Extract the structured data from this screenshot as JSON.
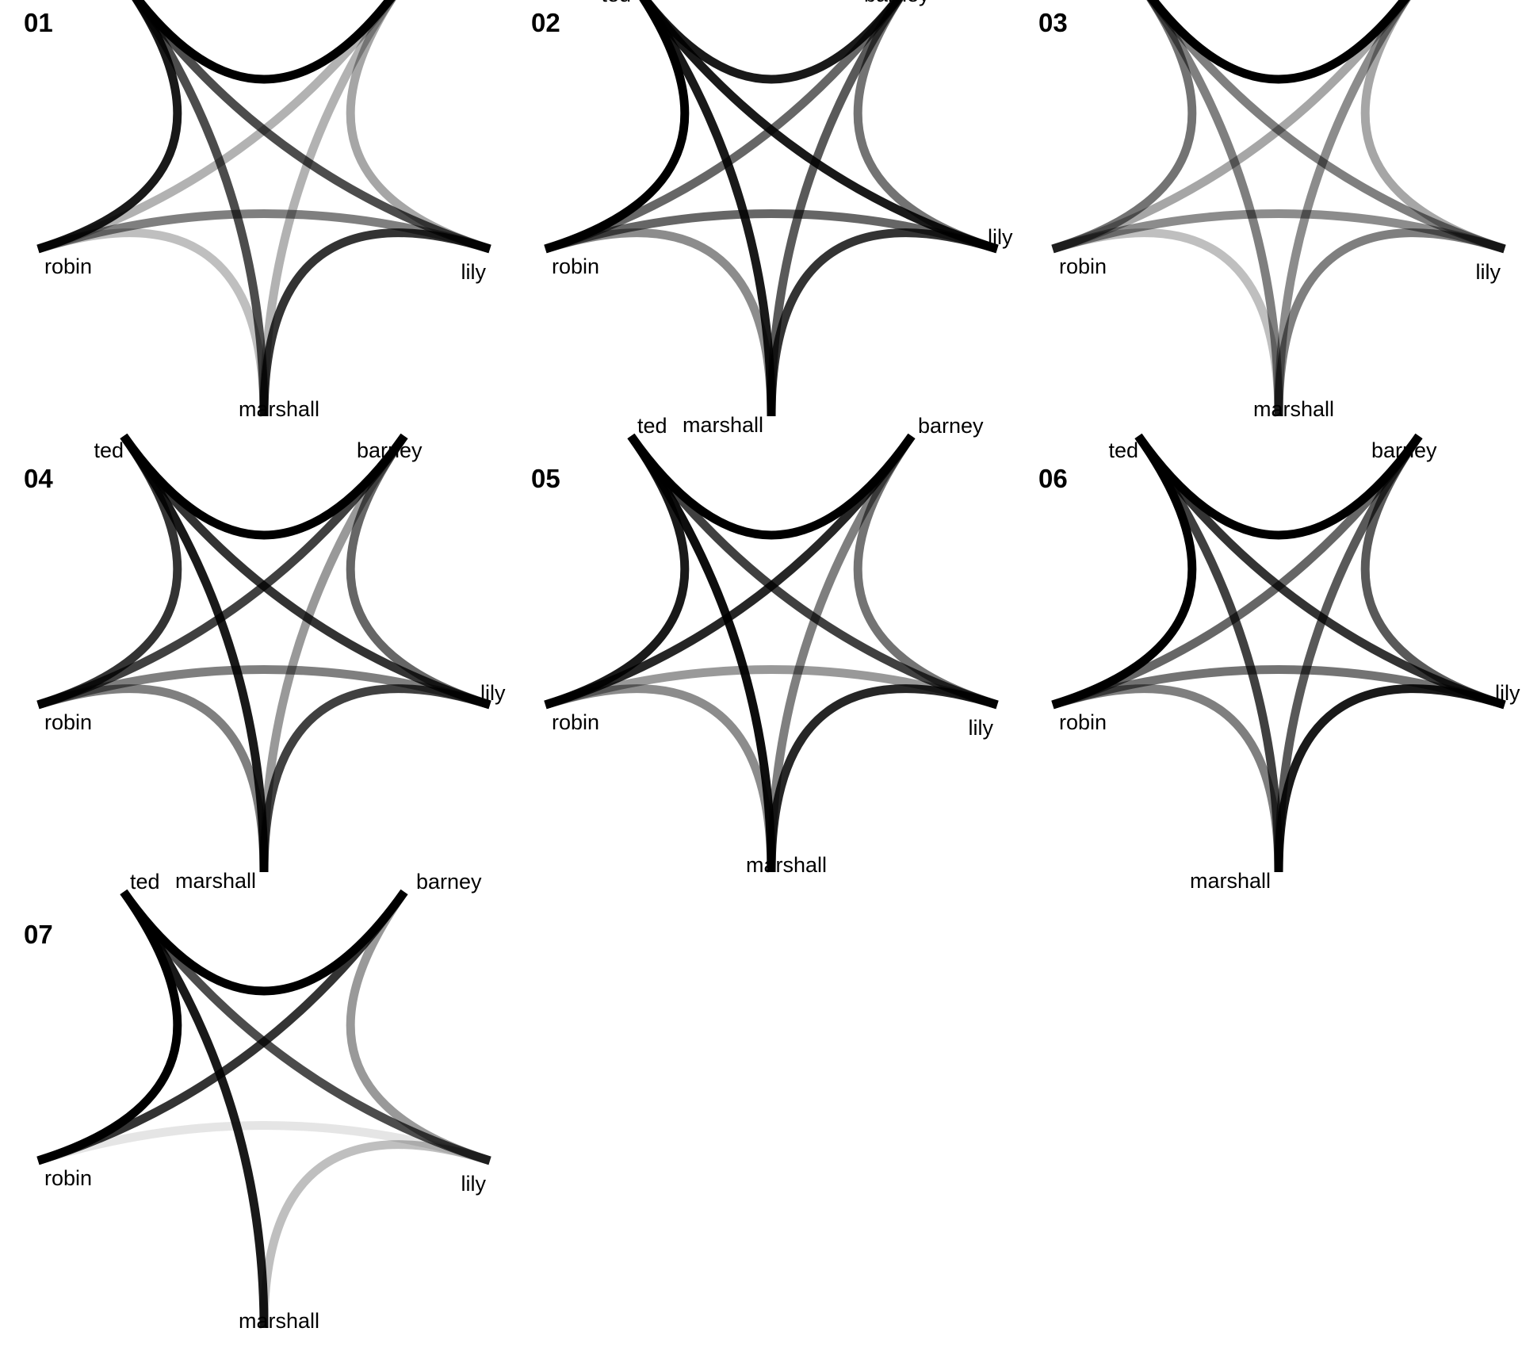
{
  "colors": {
    "edge": "#000000",
    "background": "#ffffff",
    "text": "#000000"
  },
  "nodes": [
    "ted",
    "barney",
    "lily",
    "marshall",
    "robin"
  ],
  "panels": [
    {
      "label": "01",
      "edges": [
        {
          "a": "ted",
          "b": "barney",
          "opacity": 1.0
        },
        {
          "a": "ted",
          "b": "lily",
          "opacity": 0.7
        },
        {
          "a": "ted",
          "b": "marshall",
          "opacity": 0.7
        },
        {
          "a": "ted",
          "b": "robin",
          "opacity": 0.9
        },
        {
          "a": "barney",
          "b": "lily",
          "opacity": 0.35
        },
        {
          "a": "barney",
          "b": "marshall",
          "opacity": 0.3
        },
        {
          "a": "barney",
          "b": "robin",
          "opacity": 0.3
        },
        {
          "a": "lily",
          "b": "marshall",
          "opacity": 0.8
        },
        {
          "a": "lily",
          "b": "robin",
          "opacity": 0.5
        },
        {
          "a": "marshall",
          "b": "robin",
          "opacity": 0.25
        }
      ]
    },
    {
      "label": "02",
      "edges": [
        {
          "a": "ted",
          "b": "barney",
          "opacity": 0.9
        },
        {
          "a": "ted",
          "b": "lily",
          "opacity": 0.9
        },
        {
          "a": "ted",
          "b": "marshall",
          "opacity": 0.9
        },
        {
          "a": "ted",
          "b": "robin",
          "opacity": 1.0
        },
        {
          "a": "barney",
          "b": "lily",
          "opacity": 0.55
        },
        {
          "a": "barney",
          "b": "marshall",
          "opacity": 0.65
        },
        {
          "a": "barney",
          "b": "robin",
          "opacity": 0.6
        },
        {
          "a": "lily",
          "b": "marshall",
          "opacity": 0.8
        },
        {
          "a": "lily",
          "b": "robin",
          "opacity": 0.6
        },
        {
          "a": "marshall",
          "b": "robin",
          "opacity": 0.45
        }
      ]
    },
    {
      "label": "03",
      "edges": [
        {
          "a": "ted",
          "b": "barney",
          "opacity": 1.0
        },
        {
          "a": "ted",
          "b": "lily",
          "opacity": 0.5
        },
        {
          "a": "ted",
          "b": "marshall",
          "opacity": 0.5
        },
        {
          "a": "ted",
          "b": "robin",
          "opacity": 0.55
        },
        {
          "a": "barney",
          "b": "lily",
          "opacity": 0.35
        },
        {
          "a": "barney",
          "b": "marshall",
          "opacity": 0.45
        },
        {
          "a": "barney",
          "b": "robin",
          "opacity": 0.35
        },
        {
          "a": "lily",
          "b": "marshall",
          "opacity": 0.5
        },
        {
          "a": "lily",
          "b": "robin",
          "opacity": 0.45
        },
        {
          "a": "marshall",
          "b": "robin",
          "opacity": 0.25
        }
      ]
    },
    {
      "label": "04",
      "edges": [
        {
          "a": "ted",
          "b": "barney",
          "opacity": 1.0
        },
        {
          "a": "ted",
          "b": "lily",
          "opacity": 0.8
        },
        {
          "a": "ted",
          "b": "marshall",
          "opacity": 0.9
        },
        {
          "a": "ted",
          "b": "robin",
          "opacity": 0.8
        },
        {
          "a": "barney",
          "b": "lily",
          "opacity": 0.6
        },
        {
          "a": "barney",
          "b": "marshall",
          "opacity": 0.4
        },
        {
          "a": "barney",
          "b": "robin",
          "opacity": 0.75
        },
        {
          "a": "lily",
          "b": "marshall",
          "opacity": 0.75
        },
        {
          "a": "lily",
          "b": "robin",
          "opacity": 0.5
        },
        {
          "a": "marshall",
          "b": "robin",
          "opacity": 0.5
        }
      ]
    },
    {
      "label": "05",
      "edges": [
        {
          "a": "ted",
          "b": "barney",
          "opacity": 1.0
        },
        {
          "a": "ted",
          "b": "lily",
          "opacity": 0.75
        },
        {
          "a": "ted",
          "b": "marshall",
          "opacity": 0.95
        },
        {
          "a": "ted",
          "b": "robin",
          "opacity": 0.9
        },
        {
          "a": "barney",
          "b": "lily",
          "opacity": 0.55
        },
        {
          "a": "barney",
          "b": "marshall",
          "opacity": 0.5
        },
        {
          "a": "barney",
          "b": "robin",
          "opacity": 0.85
        },
        {
          "a": "lily",
          "b": "marshall",
          "opacity": 0.85
        },
        {
          "a": "lily",
          "b": "robin",
          "opacity": 0.4
        },
        {
          "a": "marshall",
          "b": "robin",
          "opacity": 0.45
        }
      ]
    },
    {
      "label": "06",
      "edges": [
        {
          "a": "ted",
          "b": "barney",
          "opacity": 1.0
        },
        {
          "a": "ted",
          "b": "lily",
          "opacity": 0.8
        },
        {
          "a": "ted",
          "b": "marshall",
          "opacity": 0.75
        },
        {
          "a": "ted",
          "b": "robin",
          "opacity": 1.0
        },
        {
          "a": "barney",
          "b": "lily",
          "opacity": 0.65
        },
        {
          "a": "barney",
          "b": "marshall",
          "opacity": 0.65
        },
        {
          "a": "barney",
          "b": "robin",
          "opacity": 0.6
        },
        {
          "a": "lily",
          "b": "marshall",
          "opacity": 0.9
        },
        {
          "a": "lily",
          "b": "robin",
          "opacity": 0.55
        },
        {
          "a": "marshall",
          "b": "robin",
          "opacity": 0.5
        }
      ]
    },
    {
      "label": "07",
      "edges": [
        {
          "a": "ted",
          "b": "barney",
          "opacity": 1.0
        },
        {
          "a": "ted",
          "b": "lily",
          "opacity": 0.7
        },
        {
          "a": "ted",
          "b": "marshall",
          "opacity": 0.9
        },
        {
          "a": "ted",
          "b": "robin",
          "opacity": 1.0
        },
        {
          "a": "barney",
          "b": "lily",
          "opacity": 0.4
        },
        {
          "a": "barney",
          "b": "robin",
          "opacity": 0.8
        },
        {
          "a": "lily",
          "b": "marshall",
          "opacity": 0.25
        },
        {
          "a": "lily",
          "b": "robin",
          "opacity": 0.1
        }
      ]
    }
  ]
}
